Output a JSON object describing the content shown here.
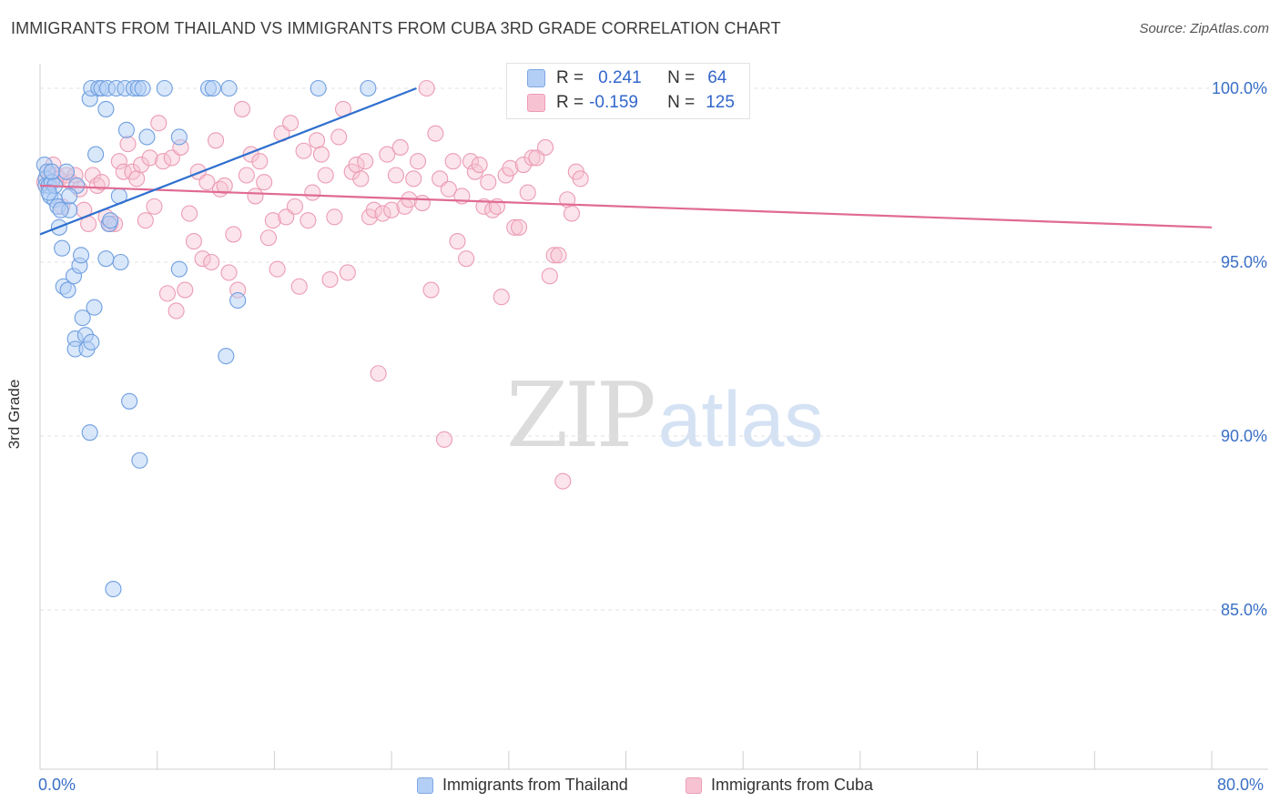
{
  "title": "IMMIGRANTS FROM THAILAND VS IMMIGRANTS FROM CUBA 3RD GRADE CORRELATION CHART",
  "source": "Source: ZipAtlas.com",
  "watermark": {
    "zip": "ZIP",
    "atlas": "atlas"
  },
  "stats": {
    "r_label": "R =",
    "n_label": "N =",
    "thailand": {
      "r": "0.241",
      "n": "64"
    },
    "cuba": {
      "r": "-0.159",
      "n": "125"
    }
  },
  "colors": {
    "thailand_fill": "#b4cff5",
    "thailand_stroke": "#6f9fe0",
    "thailand_line": "#2e6fcf",
    "cuba_fill": "#f7c3d2",
    "cuba_stroke": "#ec9cb4",
    "cuba_line": "#e06a93",
    "tick_text": "#3a6fc7",
    "grid": "#e3e3e3"
  },
  "chart_data": {
    "type": "scatter",
    "title": "IMMIGRANTS FROM THAILAND VS IMMIGRANTS FROM CUBA 3RD GRADE CORRELATION CHART",
    "xlabel": "",
    "ylabel": "3rd Grade",
    "xlim": [
      0,
      80
    ],
    "ylim": [
      80.5,
      100.9
    ],
    "x_tick_labels": [
      "0.0%",
      "80.0%"
    ],
    "y_ticks": [
      85,
      90,
      95,
      100
    ],
    "y_tick_labels": [
      "85.0%",
      "90.0%",
      "95.0%",
      "100.0%"
    ],
    "grid": "horizontal dashed",
    "legend": "bottom-center",
    "series": [
      {
        "name": "Immigrants from Thailand",
        "trend": {
          "x": [
            0.0,
            25.7
          ],
          "y": [
            95.8,
            100.0
          ]
        },
        "points": [
          [
            0.3,
            97.8
          ],
          [
            0.4,
            97.4
          ],
          [
            0.4,
            97.2
          ],
          [
            0.5,
            97.6
          ],
          [
            0.6,
            97.2
          ],
          [
            0.7,
            96.9
          ],
          [
            0.8,
            97.3
          ],
          [
            1.0,
            96.8
          ],
          [
            1.2,
            96.6
          ],
          [
            1.3,
            96.0
          ],
          [
            1.5,
            95.4
          ],
          [
            1.6,
            94.3
          ],
          [
            1.9,
            94.2
          ],
          [
            2.0,
            96.5
          ],
          [
            2.3,
            94.6
          ],
          [
            2.4,
            92.8
          ],
          [
            2.4,
            92.5
          ],
          [
            2.5,
            97.2
          ],
          [
            2.7,
            94.9
          ],
          [
            2.8,
            95.2
          ],
          [
            2.9,
            93.4
          ],
          [
            3.1,
            92.9
          ],
          [
            3.2,
            92.5
          ],
          [
            3.4,
            90.1
          ],
          [
            3.5,
            92.7
          ],
          [
            3.7,
            93.7
          ],
          [
            3.8,
            98.1
          ],
          [
            3.4,
            99.7
          ],
          [
            3.5,
            100.0
          ],
          [
            4.0,
            100.0
          ],
          [
            4.2,
            100.0
          ],
          [
            4.5,
            99.4
          ],
          [
            4.6,
            100.0
          ],
          [
            4.7,
            96.1
          ],
          [
            4.8,
            96.2
          ],
          [
            5.0,
            85.6
          ],
          [
            5.2,
            100.0
          ],
          [
            5.4,
            96.9
          ],
          [
            5.5,
            95.0
          ],
          [
            5.8,
            100.0
          ],
          [
            5.9,
            98.8
          ],
          [
            6.1,
            91.0
          ],
          [
            6.4,
            100.0
          ],
          [
            6.7,
            100.0
          ],
          [
            6.8,
            89.3
          ],
          [
            7.0,
            100.0
          ],
          [
            7.3,
            98.6
          ],
          [
            8.5,
            100.0
          ],
          [
            9.5,
            98.6
          ],
          [
            9.5,
            94.8
          ],
          [
            11.5,
            100.0
          ],
          [
            11.8,
            100.0
          ],
          [
            12.7,
            92.3
          ],
          [
            12.9,
            100.0
          ],
          [
            13.5,
            93.9
          ],
          [
            19.0,
            100.0
          ],
          [
            22.4,
            100.0
          ],
          [
            1.0,
            97.2
          ],
          [
            1.8,
            97.6
          ],
          [
            0.6,
            97.0
          ],
          [
            0.8,
            97.6
          ],
          [
            1.4,
            96.5
          ],
          [
            2.0,
            96.9
          ],
          [
            4.5,
            95.1
          ]
        ]
      },
      {
        "name": "Immigrants from Cuba",
        "trend": {
          "x": [
            0.0,
            80.0
          ],
          "y": [
            97.2,
            96.0
          ]
        },
        "points": [
          [
            0.3,
            97.3
          ],
          [
            0.5,
            97.6
          ],
          [
            0.7,
            97.5
          ],
          [
            0.9,
            97.8
          ],
          [
            1.1,
            97.5
          ],
          [
            1.3,
            97.4
          ],
          [
            1.5,
            96.6
          ],
          [
            1.8,
            97.5
          ],
          [
            2.1,
            97.3
          ],
          [
            2.4,
            97.5
          ],
          [
            2.7,
            97.1
          ],
          [
            3.0,
            96.5
          ],
          [
            3.3,
            96.1
          ],
          [
            3.6,
            97.5
          ],
          [
            3.9,
            97.2
          ],
          [
            4.2,
            97.3
          ],
          [
            4.5,
            96.3
          ],
          [
            4.8,
            96.1
          ],
          [
            5.1,
            96.1
          ],
          [
            5.4,
            97.9
          ],
          [
            5.7,
            97.6
          ],
          [
            6.0,
            98.4
          ],
          [
            6.3,
            97.6
          ],
          [
            6.6,
            97.4
          ],
          [
            6.9,
            97.8
          ],
          [
            7.2,
            96.2
          ],
          [
            7.5,
            98.0
          ],
          [
            7.8,
            96.6
          ],
          [
            8.1,
            99.0
          ],
          [
            8.4,
            97.9
          ],
          [
            8.7,
            94.1
          ],
          [
            9.0,
            98.0
          ],
          [
            9.3,
            93.6
          ],
          [
            9.6,
            98.3
          ],
          [
            9.9,
            94.2
          ],
          [
            10.2,
            96.4
          ],
          [
            10.5,
            95.6
          ],
          [
            10.8,
            97.6
          ],
          [
            11.1,
            95.1
          ],
          [
            11.4,
            97.3
          ],
          [
            11.7,
            95.0
          ],
          [
            12.0,
            98.5
          ],
          [
            12.3,
            97.1
          ],
          [
            12.6,
            97.2
          ],
          [
            12.9,
            94.7
          ],
          [
            13.2,
            95.8
          ],
          [
            13.5,
            94.2
          ],
          [
            13.8,
            99.4
          ],
          [
            14.1,
            97.5
          ],
          [
            14.4,
            98.1
          ],
          [
            14.7,
            96.9
          ],
          [
            15.0,
            97.9
          ],
          [
            15.3,
            97.3
          ],
          [
            15.6,
            95.7
          ],
          [
            15.9,
            96.2
          ],
          [
            16.2,
            94.8
          ],
          [
            16.5,
            98.7
          ],
          [
            16.8,
            96.3
          ],
          [
            17.1,
            99.0
          ],
          [
            17.4,
            96.6
          ],
          [
            17.7,
            94.3
          ],
          [
            18.0,
            98.2
          ],
          [
            18.3,
            96.2
          ],
          [
            18.6,
            97.0
          ],
          [
            18.9,
            98.5
          ],
          [
            19.2,
            98.1
          ],
          [
            19.5,
            97.5
          ],
          [
            19.8,
            94.5
          ],
          [
            20.1,
            96.3
          ],
          [
            20.4,
            98.6
          ],
          [
            20.7,
            99.4
          ],
          [
            21.0,
            94.7
          ],
          [
            21.3,
            97.6
          ],
          [
            21.6,
            97.8
          ],
          [
            21.9,
            97.4
          ],
          [
            22.2,
            97.9
          ],
          [
            22.5,
            96.3
          ],
          [
            22.8,
            96.5
          ],
          [
            23.1,
            91.8
          ],
          [
            23.4,
            96.4
          ],
          [
            23.7,
            98.1
          ],
          [
            24.0,
            96.5
          ],
          [
            24.3,
            97.5
          ],
          [
            24.6,
            98.3
          ],
          [
            24.9,
            96.6
          ],
          [
            25.2,
            96.8
          ],
          [
            25.5,
            97.4
          ],
          [
            25.8,
            97.9
          ],
          [
            26.1,
            96.7
          ],
          [
            26.4,
            100.0
          ],
          [
            26.7,
            94.2
          ],
          [
            27.0,
            98.7
          ],
          [
            27.3,
            97.4
          ],
          [
            27.6,
            89.9
          ],
          [
            27.9,
            97.1
          ],
          [
            28.2,
            97.9
          ],
          [
            28.5,
            95.6
          ],
          [
            28.8,
            96.9
          ],
          [
            29.1,
            95.1
          ],
          [
            29.4,
            97.9
          ],
          [
            29.7,
            97.6
          ],
          [
            30.0,
            97.8
          ],
          [
            30.3,
            96.6
          ],
          [
            30.6,
            97.3
          ],
          [
            30.9,
            96.5
          ],
          [
            31.2,
            96.6
          ],
          [
            31.5,
            94.0
          ],
          [
            31.8,
            97.5
          ],
          [
            32.1,
            97.7
          ],
          [
            32.4,
            96.0
          ],
          [
            32.7,
            96.0
          ],
          [
            33.0,
            97.8
          ],
          [
            33.3,
            97.0
          ],
          [
            33.6,
            98.0
          ],
          [
            33.9,
            98.0
          ],
          [
            34.2,
            100.0
          ],
          [
            34.5,
            98.3
          ],
          [
            34.8,
            94.6
          ],
          [
            35.1,
            95.2
          ],
          [
            35.4,
            95.2
          ],
          [
            35.7,
            88.7
          ],
          [
            36.0,
            96.8
          ],
          [
            36.3,
            96.4
          ],
          [
            36.6,
            97.6
          ],
          [
            36.9,
            97.4
          ]
        ]
      }
    ]
  },
  "legend": {
    "thailand": "Immigrants from Thailand",
    "cuba": "Immigrants from Cuba"
  },
  "axis": {
    "ylabel": "3rd Grade",
    "x_min_label": "0.0%",
    "x_max_label": "80.0%",
    "y_labels": [
      "100.0%",
      "95.0%",
      "90.0%",
      "85.0%"
    ]
  }
}
